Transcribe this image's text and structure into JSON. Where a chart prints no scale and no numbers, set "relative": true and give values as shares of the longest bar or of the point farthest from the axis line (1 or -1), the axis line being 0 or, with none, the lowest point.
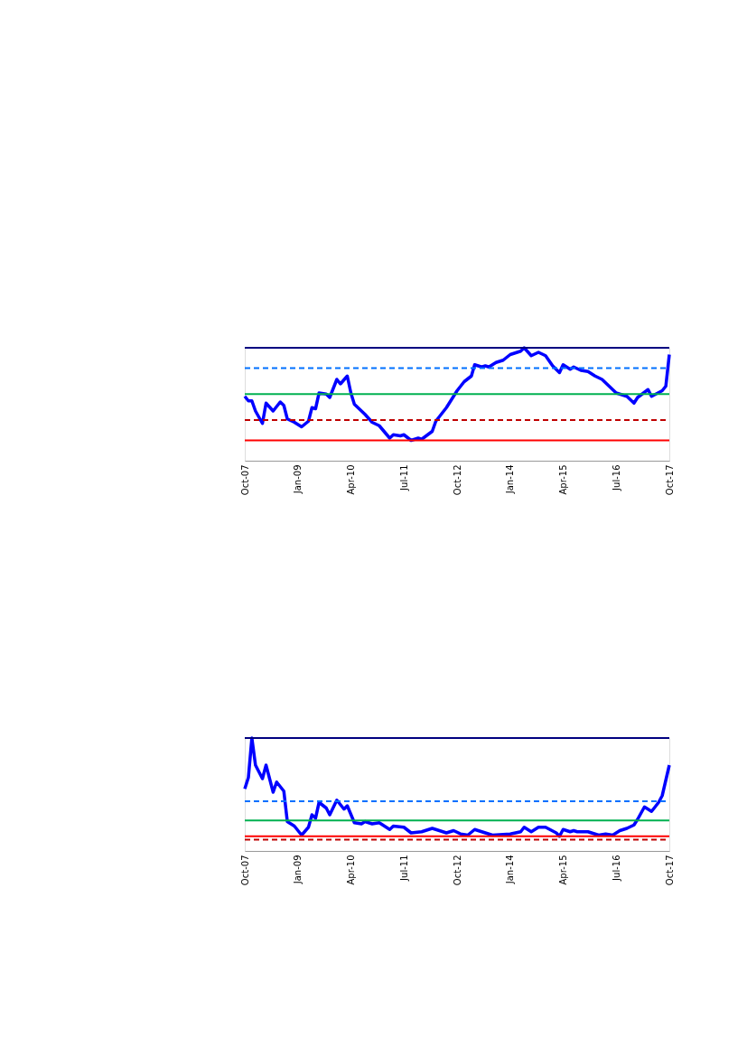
{
  "chart_data": [
    {
      "type": "line",
      "relative": true,
      "grid": false,
      "marker": "none",
      "xlim": [
        "2007-10",
        "2017-10"
      ],
      "xticks": [
        {
          "value": "2007-10",
          "label": "Oct-07"
        },
        {
          "value": "2009-01",
          "label": "Jan-09"
        },
        {
          "value": "2010-04",
          "label": "Apr-10"
        },
        {
          "value": "2011-07",
          "label": "Jul-11"
        },
        {
          "value": "2012-10",
          "label": "Oct-12"
        },
        {
          "value": "2014-01",
          "label": "Jan-14"
        },
        {
          "value": "2015-04",
          "label": "Apr-15"
        },
        {
          "value": "2016-07",
          "label": "Jul-16"
        },
        {
          "value": "2017-10",
          "label": "Oct-17"
        }
      ],
      "series": [
        {
          "color": "#0000ff",
          "line_style": "solid",
          "x": [
            "2007-10",
            "2007-11",
            "2007-12",
            "2008-01",
            "2008-03",
            "2008-04",
            "2008-06",
            "2008-08",
            "2008-09",
            "2008-10",
            "2008-12",
            "2009-02",
            "2009-04",
            "2009-05",
            "2009-06",
            "2009-07",
            "2009-09",
            "2009-10",
            "2009-12",
            "2010-01",
            "2010-03",
            "2010-04",
            "2010-05",
            "2010-08",
            "2010-10",
            "2010-12",
            "2011-03",
            "2011-04",
            "2011-06",
            "2011-07",
            "2011-09",
            "2011-11",
            "2011-12",
            "2012-03",
            "2012-04",
            "2012-07",
            "2012-10",
            "2012-12",
            "2013-02",
            "2013-03",
            "2013-05",
            "2013-06",
            "2013-07",
            "2013-09",
            "2013-11",
            "2014-01",
            "2014-04",
            "2014-05",
            "2014-07",
            "2014-09",
            "2014-11",
            "2015-01",
            "2015-03",
            "2015-04",
            "2015-06",
            "2015-07",
            "2015-09",
            "2015-11",
            "2016-01",
            "2016-03",
            "2016-05",
            "2016-07",
            "2016-10",
            "2016-12",
            "2017-01",
            "2017-04",
            "2017-05",
            "2017-08",
            "2017-09",
            "2017-10"
          ],
          "values": [
            0.57,
            0.53,
            0.53,
            0.44,
            0.33,
            0.51,
            0.44,
            0.52,
            0.49,
            0.37,
            0.34,
            0.3,
            0.35,
            0.47,
            0.46,
            0.6,
            0.59,
            0.56,
            0.72,
            0.68,
            0.75,
            0.6,
            0.5,
            0.41,
            0.34,
            0.31,
            0.2,
            0.23,
            0.22,
            0.23,
            0.18,
            0.2,
            0.19,
            0.26,
            0.35,
            0.47,
            0.62,
            0.7,
            0.75,
            0.85,
            0.83,
            0.84,
            0.83,
            0.87,
            0.89,
            0.94,
            0.97,
            1.0,
            0.93,
            0.96,
            0.93,
            0.84,
            0.78,
            0.85,
            0.81,
            0.83,
            0.8,
            0.79,
            0.75,
            0.72,
            0.66,
            0.6,
            0.57,
            0.51,
            0.56,
            0.63,
            0.57,
            0.62,
            0.66,
            0.94
          ]
        },
        {
          "color": "#00b050",
          "line_style": "solid",
          "x": [
            "2007-10",
            "2017-10"
          ],
          "values": [
            0.59,
            0.59
          ]
        },
        {
          "color": "#000080",
          "line_style": "solid",
          "x": [
            "2007-10",
            "2017-10"
          ],
          "values": [
            1.0,
            1.0
          ]
        },
        {
          "color": "#ff0000",
          "line_style": "solid",
          "x": [
            "2007-10",
            "2017-10"
          ],
          "values": [
            0.18,
            0.18
          ]
        },
        {
          "color": "#0070ff",
          "line_style": "dashed",
          "x": [
            "2007-10",
            "2017-10"
          ],
          "values": [
            0.82,
            0.82
          ]
        },
        {
          "color": "#c00000",
          "line_style": "dashed",
          "x": [
            "2007-10",
            "2017-10"
          ],
          "values": [
            0.36,
            0.36
          ]
        }
      ]
    },
    {
      "type": "line",
      "relative": true,
      "grid": false,
      "marker": "none",
      "xlim": [
        "2007-10",
        "2017-10"
      ],
      "xticks": [
        {
          "value": "2007-10",
          "label": "Oct-07"
        },
        {
          "value": "2009-01",
          "label": "Jan-09"
        },
        {
          "value": "2010-04",
          "label": "Apr-10"
        },
        {
          "value": "2011-07",
          "label": "Jul-11"
        },
        {
          "value": "2012-10",
          "label": "Oct-12"
        },
        {
          "value": "2014-01",
          "label": "Jan-14"
        },
        {
          "value": "2015-04",
          "label": "Apr-15"
        },
        {
          "value": "2016-07",
          "label": "Jul-16"
        },
        {
          "value": "2017-10",
          "label": "Oct-17"
        }
      ],
      "series": [
        {
          "color": "#0000ff",
          "line_style": "solid",
          "x": [
            "2007-10",
            "2007-11",
            "2007-12",
            "2008-01",
            "2008-03",
            "2008-04",
            "2008-06",
            "2008-07",
            "2008-09",
            "2008-10",
            "2008-12",
            "2009-02",
            "2009-04",
            "2009-05",
            "2009-06",
            "2009-07",
            "2009-09",
            "2009-10",
            "2009-12",
            "2010-02",
            "2010-03",
            "2010-05",
            "2010-07",
            "2010-08",
            "2010-10",
            "2010-12",
            "2011-03",
            "2011-04",
            "2011-07",
            "2011-09",
            "2011-12",
            "2012-03",
            "2012-04",
            "2012-07",
            "2012-09",
            "2012-11",
            "2013-01",
            "2013-03",
            "2013-06",
            "2013-08",
            "2014-01",
            "2014-04",
            "2014-05",
            "2014-07",
            "2014-09",
            "2014-11",
            "2015-02",
            "2015-03",
            "2015-04",
            "2015-06",
            "2015-07",
            "2015-08",
            "2015-11",
            "2016-02",
            "2016-04",
            "2016-06",
            "2016-08",
            "2016-10",
            "2016-12",
            "2017-01",
            "2017-03",
            "2017-05",
            "2017-07",
            "2017-08",
            "2017-10"
          ],
          "values": [
            0.55,
            0.65,
            1.0,
            0.76,
            0.64,
            0.76,
            0.52,
            0.61,
            0.53,
            0.26,
            0.22,
            0.14,
            0.21,
            0.32,
            0.29,
            0.43,
            0.38,
            0.32,
            0.45,
            0.37,
            0.4,
            0.25,
            0.24,
            0.26,
            0.24,
            0.25,
            0.19,
            0.22,
            0.21,
            0.16,
            0.17,
            0.2,
            0.19,
            0.16,
            0.18,
            0.15,
            0.14,
            0.19,
            0.16,
            0.14,
            0.15,
            0.17,
            0.21,
            0.17,
            0.21,
            0.21,
            0.16,
            0.13,
            0.19,
            0.17,
            0.18,
            0.17,
            0.17,
            0.14,
            0.15,
            0.14,
            0.18,
            0.2,
            0.23,
            0.28,
            0.39,
            0.35,
            0.43,
            0.49,
            0.76
          ]
        },
        {
          "color": "#00b050",
          "line_style": "solid",
          "x": [
            "2007-10",
            "2017-10"
          ],
          "values": [
            0.27,
            0.27
          ]
        },
        {
          "color": "#000080",
          "line_style": "solid",
          "x": [
            "2007-10",
            "2017-10"
          ],
          "values": [
            1.0,
            1.0
          ]
        },
        {
          "color": "#ff0000",
          "line_style": "solid",
          "x": [
            "2007-10",
            "2017-10"
          ],
          "values": [
            0.13,
            0.13
          ]
        },
        {
          "color": "#0070ff",
          "line_style": "dashed",
          "x": [
            "2007-10",
            "2017-10"
          ],
          "values": [
            0.44,
            0.44
          ]
        },
        {
          "color": "#c00000",
          "line_style": "dashed",
          "x": [
            "2007-10",
            "2017-10"
          ],
          "values": [
            0.1,
            0.1
          ]
        }
      ]
    }
  ]
}
